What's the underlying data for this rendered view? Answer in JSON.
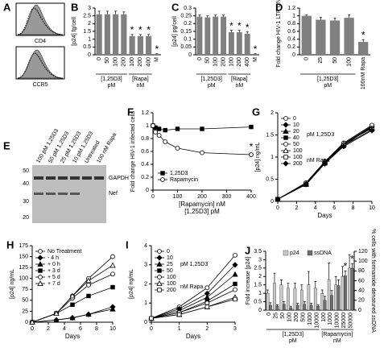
{
  "panel_a": {
    "panel": "A",
    "labels": [
      "CD4",
      "CCR5"
    ]
  },
  "panel_e": {
    "panel": "E",
    "lanes": [
      "100 pM 1,25D3",
      "50 pM 1,25D3",
      "25 pM 1,25D3",
      "10 pM 1,25D3",
      "Untreated",
      "100 nM Rapa"
    ],
    "kda": [
      50,
      40,
      30,
      20
    ],
    "bands": [
      "GAPDH",
      "Nef"
    ]
  },
  "chart_data": [
    {
      "type": "bar",
      "panel": "B",
      "ylabel": "[p24] fg/cell",
      "categories": [
        "0",
        "50",
        "100",
        "200",
        "100",
        "200",
        "400",
        "M"
      ],
      "values": [
        2.6,
        2.6,
        2.6,
        2.6,
        1.2,
        1.2,
        1.2,
        0.05
      ],
      "errors": [
        0.2,
        0.2,
        0.2,
        0.15,
        0.1,
        0.1,
        0.1,
        0.02
      ],
      "significance": [
        null,
        null,
        null,
        null,
        "*",
        "*",
        "*",
        "*"
      ],
      "groups": [
        {
          "label": "[1,25D3]",
          "unit": "pM"
        },
        {
          "label": "[Rapa]",
          "unit": "nM"
        }
      ],
      "color": "#808080",
      "ylim": [
        0,
        3
      ],
      "yticks": [
        0,
        0.5,
        1,
        1.5,
        2,
        2.5,
        3
      ]
    },
    {
      "type": "bar",
      "panel": "C",
      "ylabel": "[p24] pg/cell",
      "categories": [
        "0",
        "50",
        "100",
        "200",
        "100",
        "200",
        "400",
        "M"
      ],
      "values": [
        0.245,
        0.24,
        0.245,
        0.245,
        0.145,
        0.145,
        0.135,
        0.005
      ],
      "errors": [
        0.01,
        0.01,
        0.01,
        0.01,
        0.012,
        0.012,
        0.012,
        0.002
      ],
      "significance": [
        null,
        null,
        null,
        null,
        "*",
        "*",
        "*",
        "*"
      ],
      "groups": [
        {
          "label": "[1,25D3]",
          "unit": "pM"
        },
        {
          "label": "[Rapa]",
          "unit": "nM"
        }
      ],
      "color": "#808080",
      "ylim": [
        0,
        0.3
      ],
      "yticks": [
        0,
        0.05,
        0.1,
        0.15,
        0.2,
        0.25,
        0.3
      ]
    },
    {
      "type": "bar",
      "panel": "D",
      "ylabel": "Fold change HIV-1 LTR DNA",
      "categories": [
        "0",
        "25",
        "50",
        "100",
        "100nM Rapa"
      ],
      "values": [
        1,
        0.9,
        0.88,
        0.95,
        0.33
      ],
      "errors": [
        0.02,
        0.06,
        0.06,
        0.08,
        0.06
      ],
      "significance": [
        null,
        null,
        null,
        null,
        "*"
      ],
      "groups": [
        {
          "label": "[1,25D3]",
          "unit": "pM"
        }
      ],
      "color": "#808080",
      "ylim": [
        0,
        1.2
      ],
      "yticks": [
        0,
        0.2,
        0.4,
        0.6,
        0.8,
        1,
        1.2
      ]
    },
    {
      "type": "line",
      "panel": "F",
      "ylabel": "Fold change HIV-1 infected cells",
      "xlabel": "[Rapamycin] nM",
      "xlabel2": "[1,25D3] pM",
      "x": [
        0,
        10,
        25,
        50,
        100,
        200,
        400
      ],
      "xlim": [
        0,
        400
      ],
      "xticks": [
        0,
        100,
        200,
        300,
        400
      ],
      "ylim": [
        0,
        1.2
      ],
      "yticks": [
        0,
        0.2,
        0.4,
        0.6,
        0.8,
        1,
        1.2
      ],
      "series": [
        {
          "name": "1,25D3",
          "marker": "square",
          "color": "#000000",
          "values": [
            1,
            0.97,
            0.95,
            0.93,
            0.95,
            0.95,
            0.98
          ]
        },
        {
          "name": "Rapamycin",
          "marker": "circle",
          "color": "#ffffff",
          "values": [
            1,
            0.9,
            0.85,
            0.75,
            0.65,
            0.58,
            0.55
          ],
          "significance": [
            null,
            null,
            null,
            null,
            null,
            null,
            "*"
          ]
        }
      ]
    },
    {
      "type": "line",
      "panel": "G",
      "ylabel": "[p24] ng/mL",
      "xlabel": "Days",
      "x": [
        0,
        3,
        5,
        7,
        10
      ],
      "xlim": [
        0,
        10
      ],
      "xticks": [
        0,
        2,
        4,
        6,
        8,
        10
      ],
      "ylim": [
        0,
        2
      ],
      "yticks": [
        0,
        0.5,
        1,
        1.5,
        2
      ],
      "legend_notes": [
        "pM 1,25D3",
        "nM Rapa"
      ],
      "series": [
        {
          "name": "0",
          "marker": "circle",
          "color": "#ffffff",
          "values": [
            0.05,
            0.4,
            0.9,
            1.3,
            1.7
          ]
        },
        {
          "name": "10",
          "marker": "diamond",
          "color": "#000000",
          "values": [
            0.05,
            0.4,
            0.88,
            1.28,
            1.68
          ]
        },
        {
          "name": "20",
          "marker": "triangle",
          "color": "#000000",
          "values": [
            0.05,
            0.38,
            0.9,
            1.3,
            1.66
          ]
        },
        {
          "name": "40",
          "marker": "square",
          "color": "#000000",
          "values": [
            0.05,
            0.4,
            0.86,
            1.25,
            1.7
          ]
        },
        {
          "name": "50",
          "marker": "circle",
          "color": "#ffffff",
          "values": [
            0.05,
            0.42,
            0.9,
            1.32,
            1.72
          ]
        },
        {
          "name": "100",
          "marker": "triangle",
          "color": "#ffffff",
          "values": [
            0.05,
            0.4,
            0.88,
            1.3,
            1.65
          ]
        },
        {
          "name": "100",
          "marker": "square",
          "color": "#ffffff",
          "values": [
            0.05,
            0.38,
            0.86,
            1.26,
            1.62
          ]
        },
        {
          "name": "200",
          "marker": "diamond",
          "color": "#000000",
          "values": [
            0.05,
            0.38,
            0.85,
            1.24,
            1.6
          ]
        }
      ]
    },
    {
      "type": "line",
      "panel": "H",
      "ylabel": "[p24] ng/mL",
      "xlabel": "Days",
      "x": [
        0,
        3,
        5,
        7,
        10
      ],
      "xlim": [
        0,
        10
      ],
      "xticks": [
        0,
        2,
        4,
        6,
        8,
        10
      ],
      "ylim": [
        0,
        175
      ],
      "yticks": [
        0,
        25,
        50,
        75,
        100,
        125,
        150,
        175
      ],
      "series": [
        {
          "name": "No Treatment",
          "marker": "circle",
          "color": "#ffffff",
          "values": [
            0,
            20,
            60,
            100,
            150
          ]
        },
        {
          "name": "- 4 h",
          "marker": "diamond",
          "color": "#000000",
          "values": [
            0,
            5,
            10,
            18,
            35
          ]
        },
        {
          "name": "+ 0 h",
          "marker": "triangle",
          "color": "#000000",
          "values": [
            0,
            5,
            10,
            18,
            30
          ]
        },
        {
          "name": "+ 3 d",
          "marker": "square",
          "color": "#000000",
          "values": [
            0,
            20,
            40,
            60,
            80
          ]
        },
        {
          "name": "+ 5 d",
          "marker": "circle",
          "color": "#ffffff",
          "values": [
            0,
            20,
            55,
            85,
            110
          ]
        },
        {
          "name": "+ 7 d",
          "marker": "triangle",
          "color": "#ffffff",
          "values": [
            0,
            20,
            60,
            95,
            130
          ]
        }
      ]
    },
    {
      "type": "line",
      "panel": "I",
      "ylabel": "[p24] ng/mL",
      "xlabel": "Days",
      "x": [
        0,
        1,
        2,
        3
      ],
      "xlim": [
        0,
        3
      ],
      "xticks": [
        0,
        1,
        2,
        3
      ],
      "ylim": [
        0,
        4
      ],
      "yticks": [
        0,
        1,
        2,
        3,
        4
      ],
      "legend_notes": [
        "pM 1,25D3",
        "nM Rapa"
      ],
      "series": [
        {
          "name": "0",
          "marker": "circle",
          "color": "#ffffff",
          "values": [
            0.2,
            0.8,
            1.8,
            3.5
          ]
        },
        {
          "name": "10",
          "marker": "diamond",
          "color": "#000000",
          "values": [
            0.2,
            0.7,
            1.5,
            3
          ]
        },
        {
          "name": "25",
          "marker": "triangle",
          "color": "#000000",
          "values": [
            0.2,
            0.6,
            1.3,
            2.5
          ]
        },
        {
          "name": "50",
          "marker": "square",
          "color": "#000000",
          "values": [
            0.2,
            0.5,
            1.1,
            2
          ]
        },
        {
          "name": "100",
          "marker": "circle",
          "color": "#ffffff",
          "values": [
            0.2,
            0.5,
            1,
            1.7
          ]
        },
        {
          "name": "100",
          "marker": "triangle",
          "color": "#ffffff",
          "values": [
            0.2,
            0.4,
            0.8,
            1.3
          ]
        },
        {
          "name": "200",
          "marker": "square",
          "color": "#ffffff",
          "values": [
            0.2,
            0.4,
            0.8,
            1.2
          ]
        }
      ]
    },
    {
      "type": "dualbar",
      "panel": "J",
      "ylabel": "Fold increase [p24]",
      "y2label": "% cells with formamide denatured ssDNA",
      "categories": [
        "0",
        "25",
        "50",
        "100",
        "200",
        "500",
        "1000",
        "10000",
        "100",
        "1000",
        "10000",
        "25000",
        "50000"
      ],
      "groups": [
        {
          "label": "[1,25D3]",
          "unit": "pM"
        },
        {
          "label": "[Rapamycin]",
          "unit": "nM"
        }
      ],
      "ylim": [
        0,
        3.5
      ],
      "yticks": [
        0,
        0.5,
        1,
        1.5,
        2,
        2.5,
        3,
        3.5
      ],
      "y2lim": [
        0,
        120
      ],
      "y2ticks": [
        0,
        20,
        40,
        60,
        80,
        100,
        120
      ],
      "series": [
        {
          "name": "p24",
          "color": "#c8c8c8",
          "values": [
            1,
            1.6,
            1.5,
            1.3,
            1.3,
            1.2,
            1.5,
            1.3,
            1,
            1.8,
            1.5,
            2,
            2.5
          ],
          "errors": [
            0.2,
            0.6,
            0.3,
            0.3,
            0.3,
            0.3,
            0.8,
            0.4,
            0.2,
            1,
            0.5,
            0.6,
            0.8
          ]
        },
        {
          "name": "ssDNA",
          "color": "#707070",
          "axis": "y2",
          "values": [
            10,
            8,
            12,
            5,
            10,
            12,
            10,
            8,
            20,
            30,
            50,
            70,
            85
          ],
          "errors": [
            5,
            3,
            5,
            3,
            4,
            5,
            4,
            3,
            8,
            10,
            12,
            10,
            10
          ],
          "significance": [
            null,
            null,
            null,
            null,
            null,
            null,
            null,
            null,
            null,
            null,
            null,
            "*",
            "*"
          ]
        }
      ]
    }
  ]
}
